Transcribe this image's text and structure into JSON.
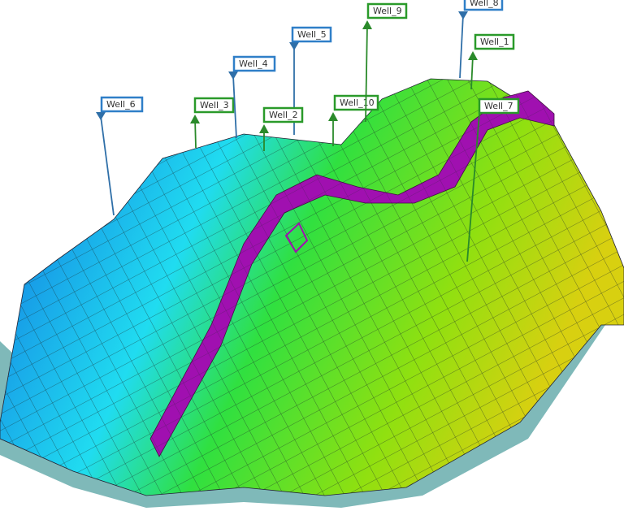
{
  "wells": [
    {
      "label": "Well_6"
    },
    {
      "label": "Well_3"
    },
    {
      "label": "Well_4"
    },
    {
      "label": "Well_5"
    },
    {
      "label": "Well_2"
    },
    {
      "label": "Well_10"
    },
    {
      "label": "Well_9"
    },
    {
      "label": "Well_8"
    },
    {
      "label": "Well_1"
    },
    {
      "label": "Well_7"
    }
  ]
}
